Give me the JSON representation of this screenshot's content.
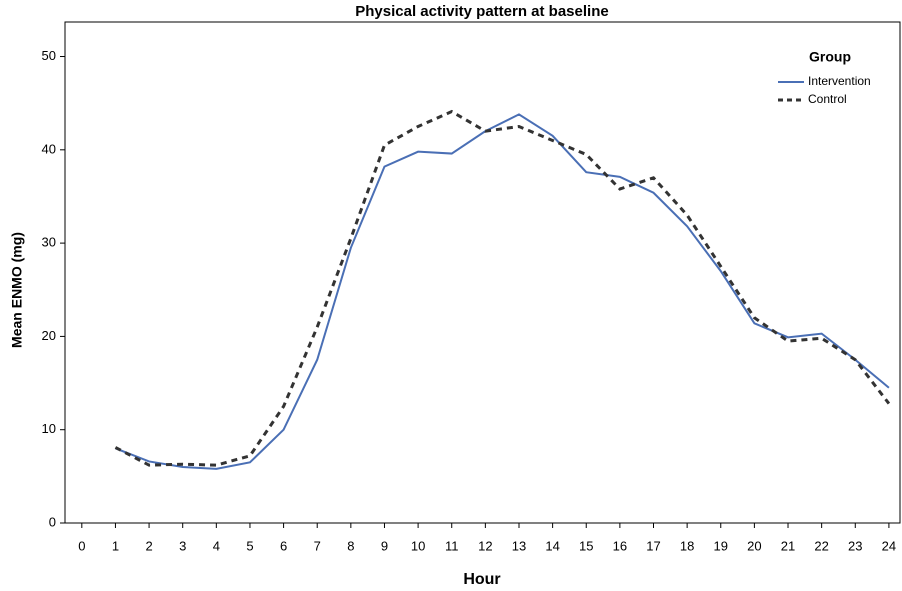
{
  "chart_data": {
    "type": "line",
    "title": "Physical activity pattern at baseline",
    "xlabel": "Hour",
    "ylabel": "Mean ENMO (mg)",
    "legend_title": "Group",
    "legend_position": "upper right",
    "grid": false,
    "x": [
      1,
      2,
      3,
      4,
      5,
      6,
      7,
      8,
      9,
      10,
      11,
      12,
      13,
      14,
      15,
      16,
      17,
      18,
      19,
      20,
      21,
      22,
      23,
      24
    ],
    "series": [
      {
        "name": "Intervention",
        "color": "#4a6fb5",
        "dash": "solid",
        "values": [
          8.0,
          6.6,
          6.0,
          5.8,
          6.5,
          10.0,
          17.5,
          29.5,
          38.2,
          39.8,
          39.6,
          42.0,
          43.8,
          41.5,
          37.6,
          37.1,
          35.4,
          31.8,
          27.0,
          21.4,
          19.9,
          20.3,
          17.5,
          14.5
        ]
      },
      {
        "name": "Control",
        "color": "#333333",
        "dash": "dashed",
        "values": [
          8.1,
          6.2,
          6.3,
          6.2,
          7.2,
          12.5,
          21.0,
          30.5,
          40.5,
          42.5,
          44.1,
          42.0,
          42.5,
          41.0,
          39.5,
          35.8,
          37.0,
          33.0,
          27.5,
          22.0,
          19.5,
          19.8,
          17.5,
          12.8
        ]
      }
    ],
    "xlim": [
      -0.5,
      24.33
    ],
    "xticks": [
      0,
      1,
      2,
      3,
      4,
      5,
      6,
      7,
      8,
      9,
      10,
      11,
      12,
      13,
      14,
      15,
      16,
      17,
      18,
      19,
      20,
      21,
      22,
      23,
      24
    ],
    "ylim": [
      0,
      53.7
    ],
    "yticks": [
      0,
      10,
      20,
      30,
      40,
      50
    ]
  }
}
